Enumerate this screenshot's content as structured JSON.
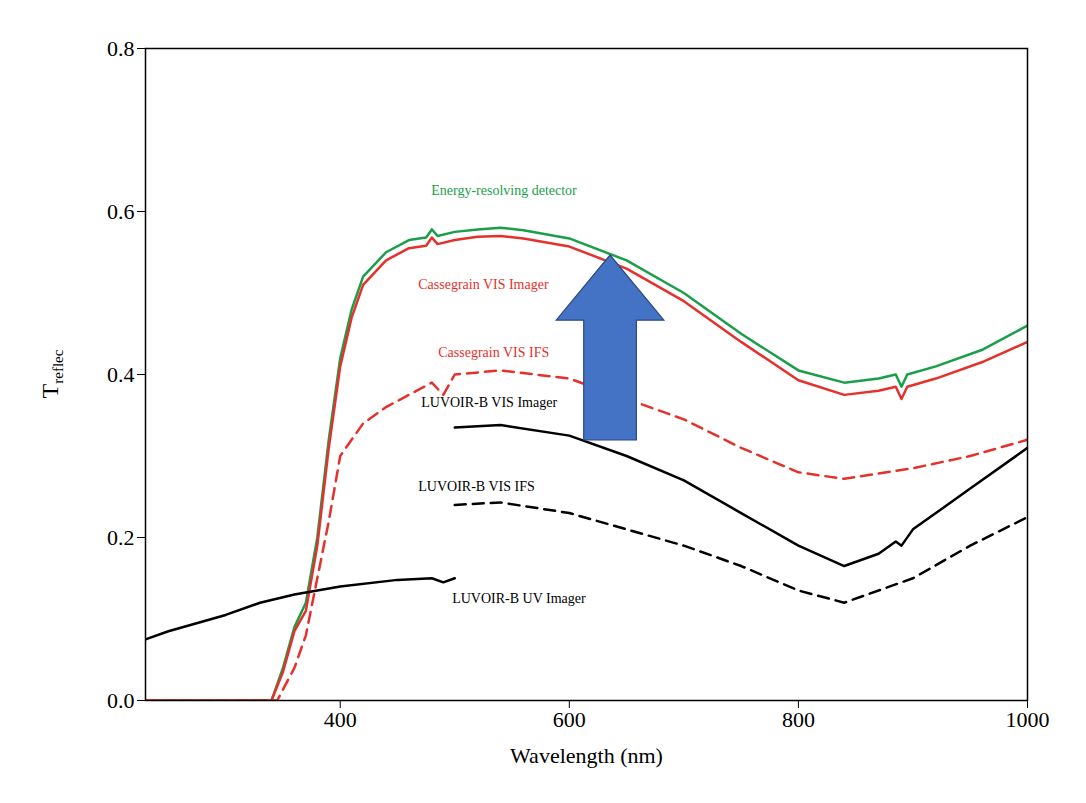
{
  "chart_data": {
    "type": "line",
    "xlabel": "Wavelength (nm)",
    "ylabel": "Treflec",
    "xlim": [
      230,
      1000
    ],
    "ylim": [
      0,
      0.8
    ],
    "xticks": [
      400,
      600,
      800,
      1000
    ],
    "yticks": [
      {
        "value": 0,
        "label": "0.0"
      },
      0.2,
      0.4,
      0.6,
      0.8
    ],
    "grid": false,
    "series": [
      {
        "name": "Energy-resolving detector",
        "color": "#1a9e4a",
        "line_style": "solid",
        "x": [
          230,
          300,
          340,
          350,
          360,
          370,
          380,
          390,
          400,
          410,
          420,
          440,
          460,
          475,
          480,
          485,
          500,
          520,
          540,
          560,
          600,
          650,
          700,
          750,
          800,
          840,
          870,
          885,
          890,
          895,
          920,
          960,
          1000
        ],
        "values": [
          0,
          0,
          0,
          0.04,
          0.09,
          0.12,
          0.2,
          0.32,
          0.42,
          0.48,
          0.52,
          0.55,
          0.565,
          0.568,
          0.578,
          0.57,
          0.575,
          0.578,
          0.58,
          0.577,
          0.567,
          0.54,
          0.5,
          0.45,
          0.405,
          0.39,
          0.395,
          0.4,
          0.385,
          0.4,
          0.41,
          0.43,
          0.46
        ]
      },
      {
        "name": "Cassegrain VIS Imager",
        "color": "#e5312b",
        "line_style": "solid",
        "x": [
          230,
          300,
          340,
          350,
          360,
          370,
          380,
          390,
          400,
          410,
          420,
          440,
          460,
          475,
          480,
          485,
          500,
          520,
          540,
          560,
          600,
          650,
          700,
          750,
          800,
          840,
          870,
          885,
          890,
          895,
          920,
          960,
          1000
        ],
        "values": [
          0,
          0,
          0,
          0.035,
          0.085,
          0.11,
          0.19,
          0.31,
          0.41,
          0.47,
          0.51,
          0.54,
          0.555,
          0.558,
          0.568,
          0.56,
          0.565,
          0.569,
          0.57,
          0.567,
          0.557,
          0.53,
          0.49,
          0.44,
          0.393,
          0.375,
          0.38,
          0.385,
          0.37,
          0.385,
          0.395,
          0.415,
          0.44
        ]
      },
      {
        "name": "Cassegrain VIS IFS",
        "color": "#e5312b",
        "line_style": "dashed",
        "x": [
          230,
          300,
          345,
          360,
          370,
          380,
          390,
          400,
          420,
          440,
          460,
          480,
          490,
          500,
          540,
          600,
          650,
          700,
          750,
          800,
          840,
          900,
          950,
          1000
        ],
        "values": [
          0,
          0,
          0,
          0.04,
          0.08,
          0.15,
          0.22,
          0.3,
          0.34,
          0.36,
          0.375,
          0.39,
          0.375,
          0.4,
          0.405,
          0.395,
          0.37,
          0.345,
          0.31,
          0.28,
          0.272,
          0.285,
          0.3,
          0.32
        ]
      },
      {
        "name": "LUVOIR-B VIS Imager",
        "color": "#000000",
        "line_style": "solid",
        "x": [
          500,
          540,
          600,
          650,
          700,
          750,
          800,
          840,
          870,
          885,
          890,
          900,
          950,
          1000
        ],
        "values": [
          0.335,
          0.338,
          0.325,
          0.3,
          0.27,
          0.23,
          0.19,
          0.165,
          0.18,
          0.195,
          0.19,
          0.21,
          0.26,
          0.31
        ]
      },
      {
        "name": "LUVOIR-B VIS IFS",
        "color": "#000000",
        "line_style": "dashed",
        "x": [
          500,
          540,
          600,
          700,
          750,
          800,
          840,
          900,
          950,
          1000
        ],
        "values": [
          0.24,
          0.243,
          0.23,
          0.19,
          0.165,
          0.135,
          0.12,
          0.15,
          0.19,
          0.225
        ]
      },
      {
        "name": "LUVOIR-B UV Imager",
        "color": "#000000",
        "line_style": "solid",
        "x": [
          230,
          250,
          300,
          330,
          360,
          400,
          450,
          480,
          490,
          500
        ],
        "values": [
          0.075,
          0.085,
          0.105,
          0.12,
          0.13,
          0.14,
          0.148,
          0.15,
          0.145,
          0.15
        ]
      }
    ]
  }
}
